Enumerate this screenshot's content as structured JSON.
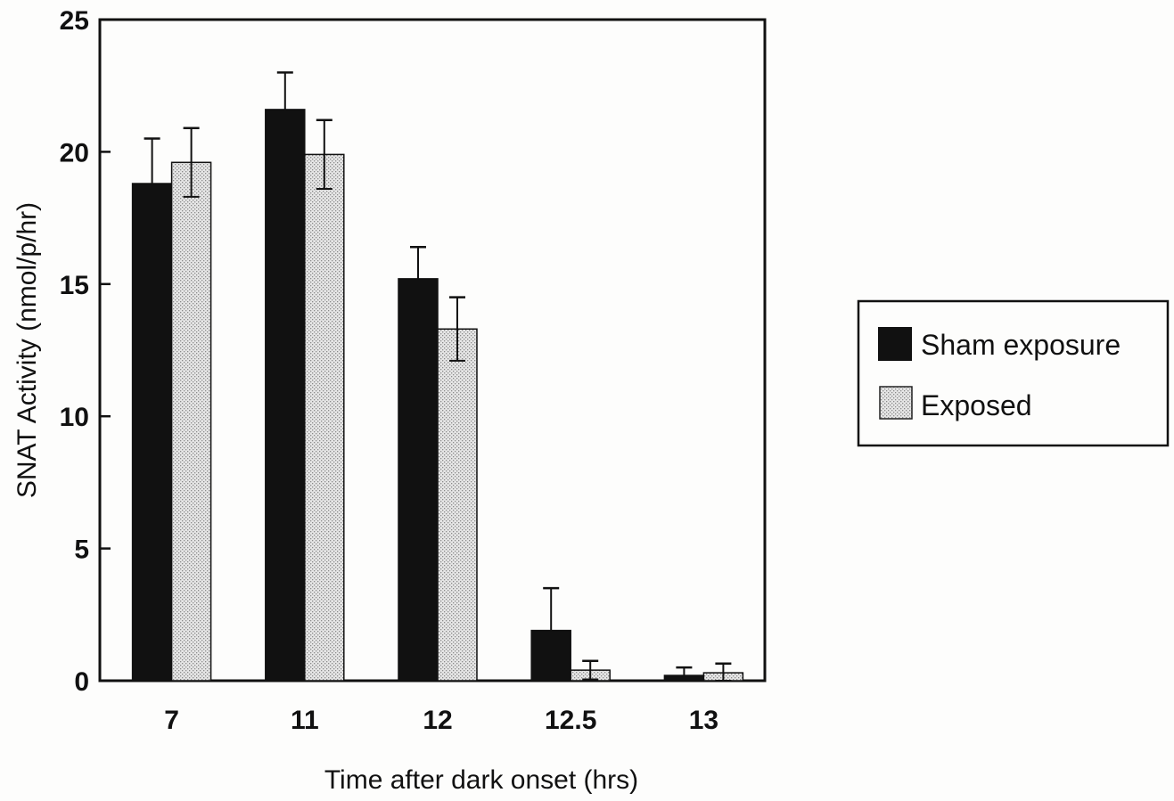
{
  "chart_data": {
    "type": "bar",
    "categories": [
      "7",
      "11",
      "12",
      "12.5",
      "13"
    ],
    "series": [
      {
        "name": "Sham exposure",
        "values": [
          18.8,
          21.6,
          15.2,
          1.9,
          0.2
        ],
        "errors": [
          1.7,
          1.4,
          1.2,
          1.6,
          0.3
        ],
        "color": "#111111"
      },
      {
        "name": "Exposed",
        "values": [
          19.6,
          19.9,
          13.3,
          0.4,
          0.3
        ],
        "errors": [
          1.3,
          1.3,
          1.2,
          0.35,
          0.35
        ],
        "color": "#d9d9d9"
      }
    ],
    "title": "",
    "xlabel": "Time after dark onset (hrs)",
    "ylabel": "SNAT Activity (nmol/p/hr)",
    "ylim": [
      0,
      25
    ],
    "yticks": [
      "0",
      "5",
      "10",
      "15",
      "20",
      "25"
    ],
    "grid": false,
    "legend_position": "right"
  }
}
